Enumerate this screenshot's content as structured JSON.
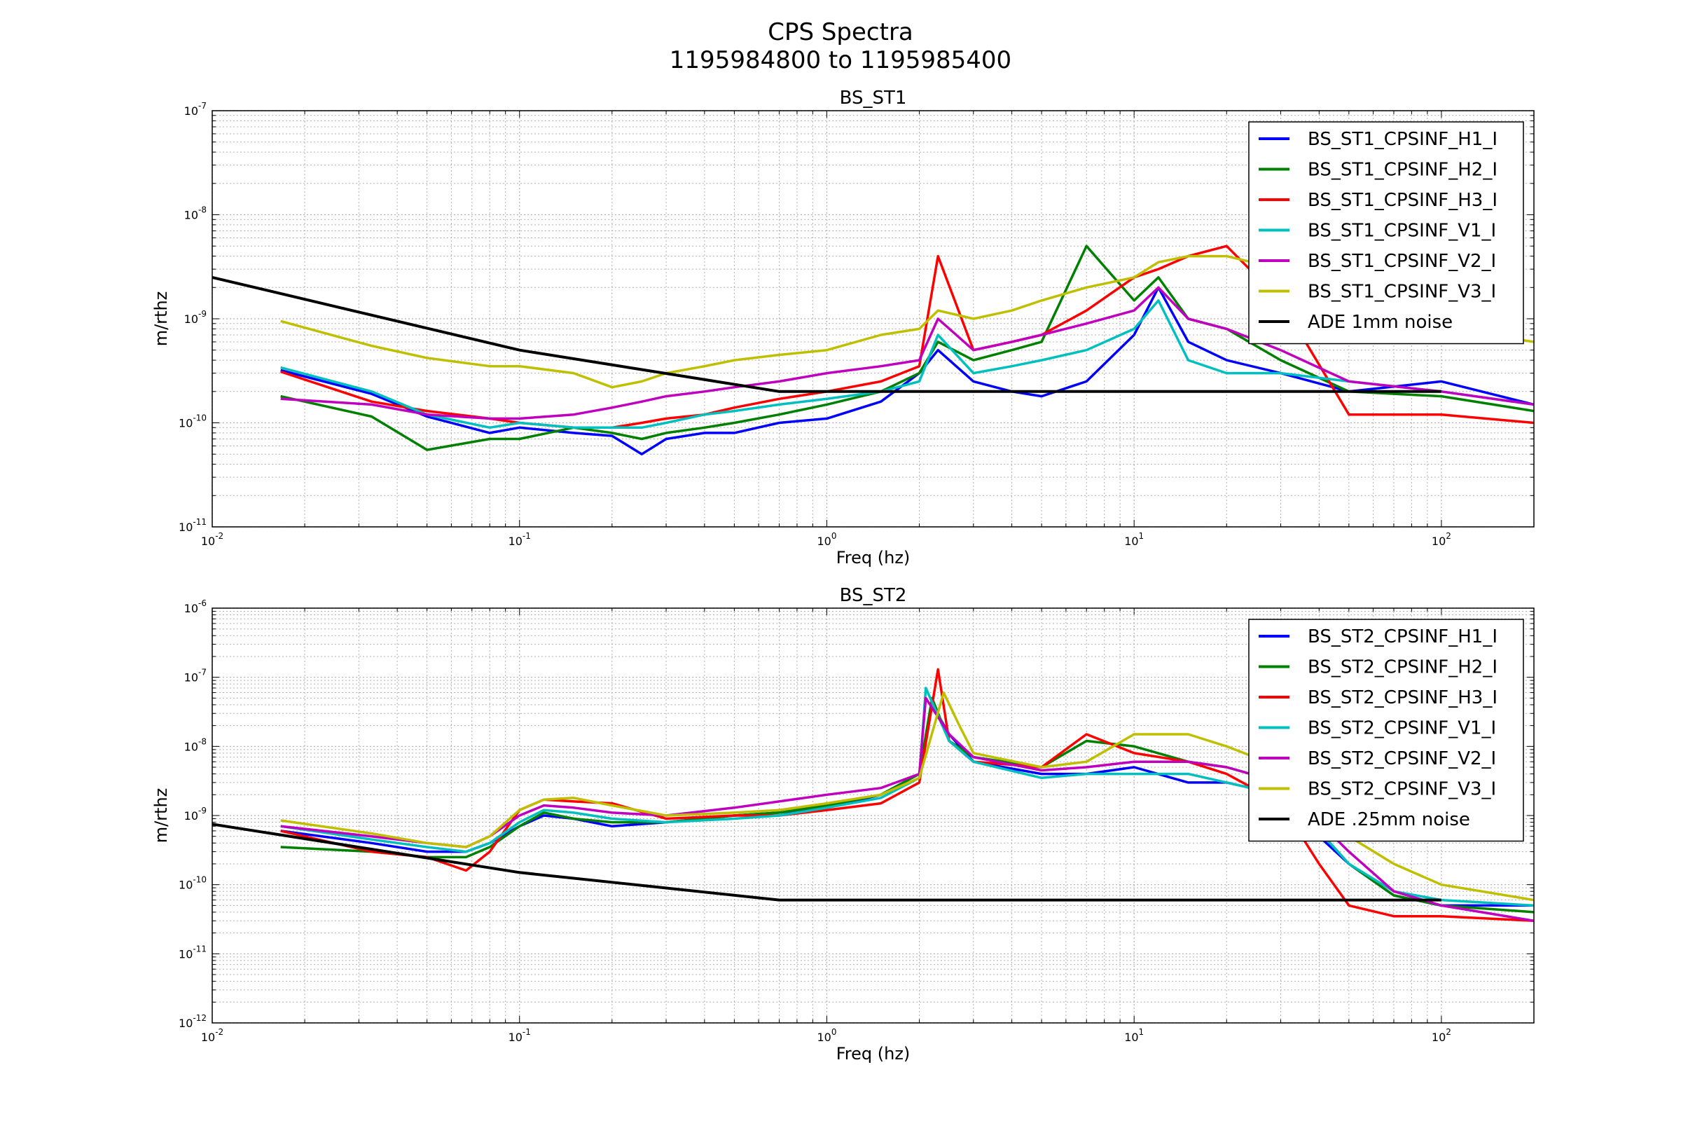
{
  "figure": {
    "title_line1": "CPS Spectra",
    "title_line2": "1195984800 to 1195985400"
  },
  "chart_data": [
    {
      "type": "line",
      "title": "BS_ST1",
      "xlabel": "Freq (hz)",
      "ylabel": "m/rthz",
      "xscale": "log",
      "yscale": "log",
      "xlim": [
        0.01,
        200
      ],
      "ylim": [
        1e-11,
        1e-07
      ],
      "x_tick_labels": [
        "10^-2",
        "10^-1",
        "10^0",
        "10^1",
        "10^2"
      ],
      "y_tick_labels": [
        "10^-11",
        "10^-10",
        "10^-9",
        "10^-8",
        "10^-7"
      ],
      "grid": true,
      "legend_position": "upper-right",
      "series": [
        {
          "name": "BS_ST1_CPSINF_H1_I",
          "color": "#0000ff",
          "x": [
            0.0167,
            0.033,
            0.05,
            0.08,
            0.1,
            0.15,
            0.2,
            0.25,
            0.3,
            0.4,
            0.5,
            0.7,
            1.0,
            1.5,
            2.0,
            2.3,
            3,
            4,
            5,
            7,
            10,
            12,
            15,
            20,
            30,
            50,
            100,
            200
          ],
          "y": [
            3.2e-10,
            1.9e-10,
            1.15e-10,
            8e-11,
            9e-11,
            8e-11,
            7.5e-11,
            5e-11,
            7e-11,
            8e-11,
            8e-11,
            1e-10,
            1.1e-10,
            1.6e-10,
            3e-10,
            5e-10,
            2.5e-10,
            2e-10,
            1.8e-10,
            2.5e-10,
            7e-10,
            2e-09,
            6e-10,
            4e-10,
            3e-10,
            2e-10,
            2.5e-10,
            1.5e-10
          ]
        },
        {
          "name": "BS_ST1_CPSINF_H2_I",
          "color": "#008000",
          "x": [
            0.0167,
            0.033,
            0.05,
            0.08,
            0.1,
            0.15,
            0.2,
            0.25,
            0.3,
            0.4,
            0.5,
            0.7,
            1.0,
            1.5,
            2.0,
            2.3,
            3,
            4,
            5,
            7,
            10,
            12,
            15,
            20,
            30,
            50,
            100,
            200
          ],
          "y": [
            1.8e-10,
            1.15e-10,
            5.5e-11,
            7e-11,
            7e-11,
            9e-11,
            8e-11,
            7e-11,
            8e-11,
            9e-11,
            1e-10,
            1.2e-10,
            1.5e-10,
            2e-10,
            3e-10,
            6e-10,
            4e-10,
            5e-10,
            6e-10,
            5e-09,
            1.5e-09,
            2.5e-09,
            1e-09,
            8e-10,
            4e-10,
            2e-10,
            1.8e-10,
            1.3e-10
          ]
        },
        {
          "name": "BS_ST1_CPSINF_H3_I",
          "color": "#ff0000",
          "x": [
            0.0167,
            0.033,
            0.05,
            0.08,
            0.1,
            0.15,
            0.2,
            0.25,
            0.3,
            0.4,
            0.5,
            0.7,
            1.0,
            1.5,
            2.0,
            2.3,
            3,
            4,
            5,
            7,
            10,
            12,
            15,
            20,
            30,
            50,
            100,
            200
          ],
          "y": [
            3.1e-10,
            1.6e-10,
            1.3e-10,
            1.1e-10,
            1e-10,
            9e-11,
            9e-11,
            1e-10,
            1.1e-10,
            1.2e-10,
            1.4e-10,
            1.7e-10,
            2e-10,
            2.5e-10,
            3.5e-10,
            4e-09,
            5e-10,
            6e-10,
            7e-10,
            1.2e-09,
            2.5e-09,
            3e-09,
            4e-09,
            5e-09,
            1.5e-09,
            1.2e-10,
            1.2e-10,
            1e-10
          ]
        },
        {
          "name": "BS_ST1_CPSINF_V1_I",
          "color": "#00bfbf",
          "x": [
            0.0167,
            0.033,
            0.05,
            0.08,
            0.1,
            0.15,
            0.2,
            0.25,
            0.3,
            0.4,
            0.5,
            0.7,
            1.0,
            1.5,
            2.0,
            2.3,
            3,
            4,
            5,
            7,
            10,
            12,
            15,
            20,
            30,
            50,
            100,
            200
          ],
          "y": [
            3.4e-10,
            2e-10,
            1.2e-10,
            9e-11,
            1e-10,
            9e-11,
            9e-11,
            9e-11,
            1e-10,
            1.2e-10,
            1.3e-10,
            1.5e-10,
            1.7e-10,
            2e-10,
            2.5e-10,
            7e-10,
            3e-10,
            3.5e-10,
            4e-10,
            5e-10,
            8e-10,
            1.5e-09,
            4e-10,
            3e-10,
            3e-10,
            2.5e-10,
            2e-10,
            1.5e-10
          ]
        },
        {
          "name": "BS_ST1_CPSINF_V2_I",
          "color": "#bf00bf",
          "x": [
            0.0167,
            0.033,
            0.05,
            0.08,
            0.1,
            0.15,
            0.2,
            0.25,
            0.3,
            0.4,
            0.5,
            0.7,
            1.0,
            1.5,
            2.0,
            2.3,
            3,
            4,
            5,
            7,
            10,
            12,
            15,
            20,
            30,
            50,
            100,
            200
          ],
          "y": [
            1.7e-10,
            1.5e-10,
            1.2e-10,
            1.1e-10,
            1.1e-10,
            1.2e-10,
            1.4e-10,
            1.6e-10,
            1.8e-10,
            2e-10,
            2.2e-10,
            2.5e-10,
            3e-10,
            3.5e-10,
            4e-10,
            1e-09,
            5e-10,
            6e-10,
            7e-10,
            9e-10,
            1.2e-09,
            2e-09,
            1e-09,
            8e-10,
            5e-10,
            2.5e-10,
            2e-10,
            1.5e-10
          ]
        },
        {
          "name": "BS_ST1_CPSINF_V3_I",
          "color": "#bfbf00",
          "x": [
            0.0167,
            0.033,
            0.05,
            0.08,
            0.1,
            0.15,
            0.2,
            0.25,
            0.3,
            0.4,
            0.5,
            0.7,
            1.0,
            1.5,
            2.0,
            2.3,
            3,
            4,
            5,
            7,
            10,
            12,
            15,
            20,
            30,
            50,
            100,
            200
          ],
          "y": [
            9.5e-10,
            5.5e-10,
            4.2e-10,
            3.5e-10,
            3.5e-10,
            3e-10,
            2.2e-10,
            2.5e-10,
            3e-10,
            3.5e-10,
            4e-10,
            4.5e-10,
            5e-10,
            7e-10,
            8e-10,
            1.2e-09,
            1e-09,
            1.2e-09,
            1.5e-09,
            2e-09,
            2.5e-09,
            3.5e-09,
            4e-09,
            4e-09,
            3e-09,
            1.5e-09,
            8e-10,
            6e-10
          ]
        },
        {
          "name": "ADE 1mm noise",
          "color": "#000000",
          "x": [
            0.01,
            0.1,
            0.7,
            100
          ],
          "y": [
            2.5e-09,
            5e-10,
            2e-10,
            2e-10
          ]
        }
      ]
    },
    {
      "type": "line",
      "title": "BS_ST2",
      "xlabel": "Freq (hz)",
      "ylabel": "m/rthz",
      "xscale": "log",
      "yscale": "log",
      "xlim": [
        0.01,
        200
      ],
      "ylim": [
        1e-12,
        1e-06
      ],
      "x_tick_labels": [
        "10^-2",
        "10^-1",
        "10^0",
        "10^1",
        "10^2"
      ],
      "y_tick_labels": [
        "10^-12",
        "10^-11",
        "10^-10",
        "10^-9",
        "10^-8",
        "10^-7",
        "10^-6"
      ],
      "grid": true,
      "legend_position": "upper-right",
      "series": [
        {
          "name": "BS_ST2_CPSINF_H1_I",
          "color": "#0000ff",
          "x": [
            0.0167,
            0.033,
            0.05,
            0.067,
            0.08,
            0.1,
            0.12,
            0.15,
            0.2,
            0.3,
            0.5,
            0.7,
            1.0,
            1.5,
            2.0,
            2.2,
            2.5,
            3,
            5,
            7,
            10,
            15,
            20,
            30,
            40,
            50,
            70,
            100,
            200
          ],
          "y": [
            6e-10,
            4e-10,
            3e-10,
            3e-10,
            4e-10,
            7e-10,
            1e-09,
            9e-10,
            7e-10,
            8e-10,
            1e-09,
            1.1e-09,
            1.3e-09,
            2e-09,
            4e-09,
            4e-08,
            1.5e-08,
            6e-09,
            4e-09,
            4e-09,
            5e-09,
            3e-09,
            3e-09,
            2e-09,
            5e-10,
            2e-10,
            7e-11,
            5e-11,
            5e-11
          ]
        },
        {
          "name": "BS_ST2_CPSINF_H2_I",
          "color": "#008000",
          "x": [
            0.0167,
            0.033,
            0.05,
            0.067,
            0.08,
            0.1,
            0.12,
            0.15,
            0.2,
            0.3,
            0.5,
            0.7,
            1.0,
            1.5,
            2.0,
            2.2,
            2.5,
            3,
            5,
            7,
            10,
            15,
            20,
            30,
            40,
            50,
            70,
            100,
            200
          ],
          "y": [
            3.5e-10,
            3e-10,
            2.5e-10,
            2.5e-10,
            3.5e-10,
            7e-10,
            1.1e-09,
            9e-10,
            8e-10,
            8e-10,
            1e-09,
            1.1e-09,
            1.4e-09,
            2e-09,
            4e-09,
            5e-08,
            1.2e-08,
            7e-09,
            5e-09,
            1.2e-08,
            1e-08,
            6e-09,
            5e-09,
            3e-09,
            6e-10,
            2e-10,
            7e-11,
            5e-11,
            4e-11
          ]
        },
        {
          "name": "BS_ST2_CPSINF_H3_I",
          "color": "#ff0000",
          "x": [
            0.0167,
            0.033,
            0.05,
            0.067,
            0.08,
            0.1,
            0.12,
            0.15,
            0.2,
            0.3,
            0.5,
            0.7,
            1.0,
            1.5,
            2.0,
            2.3,
            2.5,
            3,
            5,
            7,
            10,
            15,
            20,
            30,
            40,
            50,
            70,
            100,
            200
          ],
          "y": [
            6e-10,
            3e-10,
            2.5e-10,
            1.6e-10,
            3e-10,
            1.2e-09,
            1.7e-09,
            1.6e-09,
            1.5e-09,
            9e-10,
            1e-09,
            1e-09,
            1.2e-09,
            1.5e-09,
            3e-09,
            1.3e-07,
            1.2e-08,
            6e-09,
            5e-09,
            1.5e-08,
            8e-09,
            6e-09,
            4e-09,
            1.5e-09,
            2e-10,
            5e-11,
            3.5e-11,
            3.5e-11,
            3e-11
          ]
        },
        {
          "name": "BS_ST2_CPSINF_V1_I",
          "color": "#00bfbf",
          "x": [
            0.0167,
            0.033,
            0.05,
            0.067,
            0.08,
            0.1,
            0.12,
            0.15,
            0.2,
            0.3,
            0.5,
            0.7,
            1.0,
            1.5,
            2.0,
            2.1,
            2.5,
            3,
            5,
            7,
            10,
            15,
            20,
            30,
            40,
            50,
            70,
            100,
            200
          ],
          "y": [
            7e-10,
            4.5e-10,
            3.5e-10,
            3e-10,
            4e-10,
            8e-10,
            1.2e-09,
            1.1e-09,
            9e-10,
            8e-10,
            9e-10,
            1e-09,
            1.3e-09,
            1.8e-09,
            3.5e-09,
            7e-08,
            1.2e-08,
            6e-09,
            3.5e-09,
            4e-09,
            4e-09,
            4e-09,
            3e-09,
            2e-09,
            6e-10,
            2e-10,
            8e-11,
            6e-11,
            5e-11
          ]
        },
        {
          "name": "BS_ST2_CPSINF_V2_I",
          "color": "#bf00bf",
          "x": [
            0.0167,
            0.033,
            0.05,
            0.067,
            0.08,
            0.1,
            0.12,
            0.15,
            0.2,
            0.3,
            0.5,
            0.7,
            1.0,
            1.5,
            2.0,
            2.1,
            2.5,
            3,
            5,
            7,
            10,
            15,
            20,
            30,
            40,
            50,
            70,
            100,
            200
          ],
          "y": [
            7e-10,
            5e-10,
            4e-10,
            3.5e-10,
            5e-10,
            1e-09,
            1.4e-09,
            1.3e-09,
            1.1e-09,
            1e-09,
            1.3e-09,
            1.6e-09,
            2e-09,
            2.5e-09,
            4e-09,
            5e-08,
            1.5e-08,
            7e-09,
            4.5e-09,
            5e-09,
            6e-09,
            6e-09,
            5e-09,
            3e-09,
            8e-10,
            3e-10,
            8e-11,
            5e-11,
            3e-11
          ]
        },
        {
          "name": "BS_ST2_CPSINF_V3_I",
          "color": "#bfbf00",
          "x": [
            0.0167,
            0.033,
            0.05,
            0.067,
            0.08,
            0.1,
            0.12,
            0.15,
            0.2,
            0.3,
            0.5,
            0.7,
            1.0,
            1.5,
            2.0,
            2.4,
            2.7,
            3,
            5,
            7,
            10,
            15,
            20,
            30,
            40,
            50,
            70,
            100,
            200
          ],
          "y": [
            8.5e-10,
            5.5e-10,
            4e-10,
            3.5e-10,
            5e-10,
            1.2e-09,
            1.7e-09,
            1.8e-09,
            1.4e-09,
            1e-09,
            1.1e-09,
            1.2e-09,
            1.5e-09,
            2e-09,
            3.5e-09,
            6e-08,
            2e-08,
            8e-09,
            5e-09,
            6e-09,
            1.5e-08,
            1.5e-08,
            1e-08,
            5e-09,
            1.5e-09,
            5e-10,
            2e-10,
            1e-10,
            6e-11
          ]
        },
        {
          "name": "ADE .25mm noise",
          "color": "#000000",
          "x": [
            0.01,
            0.1,
            0.7,
            100
          ],
          "y": [
            7.5e-10,
            1.5e-10,
            6e-11,
            6e-11
          ]
        }
      ]
    }
  ]
}
